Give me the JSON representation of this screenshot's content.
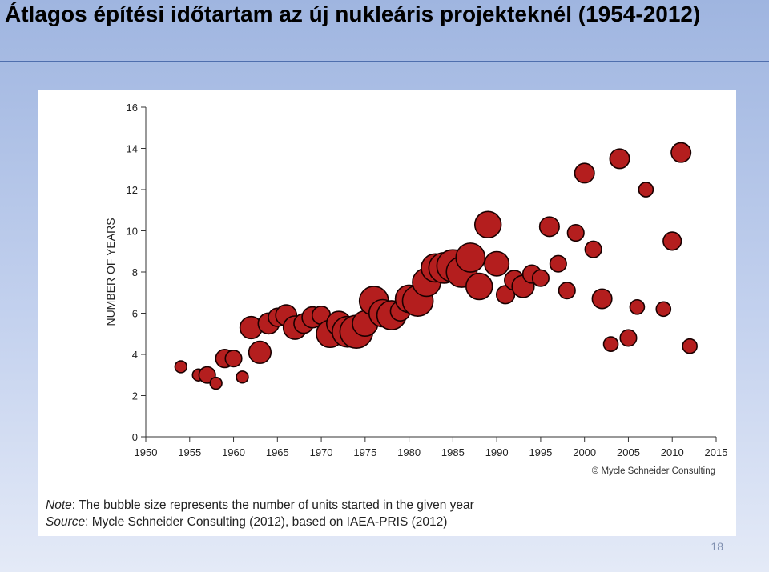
{
  "slide": {
    "title": "Átlagos építési időtartam az új nukleáris projekteknél (1954-2012)",
    "page_number": "18"
  },
  "chart_data": {
    "type": "scatter",
    "title": "",
    "xlabel": "",
    "ylabel": "NUMBER OF YEARS",
    "xlim": [
      1950,
      2015
    ],
    "ylim": [
      0,
      16
    ],
    "x_ticks": [
      "1950",
      "1955",
      "1960",
      "1965",
      "1970",
      "1975",
      "1980",
      "1985",
      "1990",
      "1995",
      "2000",
      "2005",
      "2010",
      "2015"
    ],
    "y_ticks": [
      "0",
      "2",
      "4",
      "6",
      "8",
      "10",
      "12",
      "14",
      "16"
    ],
    "grid": false,
    "legend": "none",
    "bubble_color": "#b41e1e",
    "bubble_stroke": "#1a0000",
    "copyright": "© Mycle Schneider Consulting",
    "note_label": "Note",
    "note_text": ": The bubble size represents the number of units started in the given year",
    "source_label": "Source",
    "source_text": ": Mycle Schneider Consulting (2012), based on IAEA-PRIS (2012)",
    "points": [
      {
        "x": 1954,
        "y": 3.4,
        "size": 1
      },
      {
        "x": 1956,
        "y": 3.0,
        "size": 1
      },
      {
        "x": 1957,
        "y": 3.0,
        "size": 3
      },
      {
        "x": 1958,
        "y": 2.6,
        "size": 1
      },
      {
        "x": 1959,
        "y": 3.8,
        "size": 4
      },
      {
        "x": 1960,
        "y": 3.8,
        "size": 3
      },
      {
        "x": 1961,
        "y": 2.9,
        "size": 1
      },
      {
        "x": 1962,
        "y": 5.3,
        "size": 7
      },
      {
        "x": 1963,
        "y": 4.1,
        "size": 7
      },
      {
        "x": 1964,
        "y": 5.5,
        "size": 6
      },
      {
        "x": 1965,
        "y": 5.8,
        "size": 4
      },
      {
        "x": 1966,
        "y": 5.9,
        "size": 6
      },
      {
        "x": 1967,
        "y": 5.3,
        "size": 8
      },
      {
        "x": 1968,
        "y": 5.5,
        "size": 5
      },
      {
        "x": 1969,
        "y": 5.8,
        "size": 6
      },
      {
        "x": 1970,
        "y": 5.9,
        "size": 4
      },
      {
        "x": 1971,
        "y": 5.0,
        "size": 12
      },
      {
        "x": 1972,
        "y": 5.5,
        "size": 9
      },
      {
        "x": 1973,
        "y": 5.1,
        "size": 16
      },
      {
        "x": 1974,
        "y": 5.1,
        "size": 19
      },
      {
        "x": 1975,
        "y": 5.5,
        "size": 10
      },
      {
        "x": 1976,
        "y": 6.6,
        "size": 14
      },
      {
        "x": 1977,
        "y": 6.0,
        "size": 12
      },
      {
        "x": 1978,
        "y": 5.9,
        "size": 14
      },
      {
        "x": 1979,
        "y": 6.1,
        "size": 5
      },
      {
        "x": 1980,
        "y": 6.7,
        "size": 12
      },
      {
        "x": 1981,
        "y": 6.6,
        "size": 16
      },
      {
        "x": 1982,
        "y": 7.5,
        "size": 13
      },
      {
        "x": 1983,
        "y": 8.2,
        "size": 13
      },
      {
        "x": 1984,
        "y": 8.2,
        "size": 16
      },
      {
        "x": 1985,
        "y": 8.3,
        "size": 18
      },
      {
        "x": 1986,
        "y": 8.0,
        "size": 16
      },
      {
        "x": 1987,
        "y": 8.7,
        "size": 14
      },
      {
        "x": 1988,
        "y": 7.3,
        "size": 11
      },
      {
        "x": 1989,
        "y": 10.3,
        "size": 11
      },
      {
        "x": 1990,
        "y": 8.4,
        "size": 9
      },
      {
        "x": 1991,
        "y": 6.9,
        "size": 4
      },
      {
        "x": 1992,
        "y": 7.6,
        "size": 5
      },
      {
        "x": 1993,
        "y": 7.3,
        "size": 7
      },
      {
        "x": 1994,
        "y": 7.9,
        "size": 4
      },
      {
        "x": 1995,
        "y": 7.7,
        "size": 3
      },
      {
        "x": 1996,
        "y": 10.2,
        "size": 5
      },
      {
        "x": 1997,
        "y": 8.4,
        "size": 3
      },
      {
        "x": 1998,
        "y": 7.1,
        "size": 3
      },
      {
        "x": 1999,
        "y": 9.9,
        "size": 3
      },
      {
        "x": 2000,
        "y": 12.8,
        "size": 5
      },
      {
        "x": 2001,
        "y": 9.1,
        "size": 3
      },
      {
        "x": 2002,
        "y": 6.7,
        "size": 5
      },
      {
        "x": 2003,
        "y": 4.5,
        "size": 2
      },
      {
        "x": 2004,
        "y": 13.5,
        "size": 5
      },
      {
        "x": 2005,
        "y": 4.8,
        "size": 3
      },
      {
        "x": 2006,
        "y": 6.3,
        "size": 2
      },
      {
        "x": 2007,
        "y": 12.0,
        "size": 2
      },
      {
        "x": 2009,
        "y": 6.2,
        "size": 2
      },
      {
        "x": 2010,
        "y": 9.5,
        "size": 4
      },
      {
        "x": 2011,
        "y": 13.8,
        "size": 5
      },
      {
        "x": 2012,
        "y": 4.4,
        "size": 2
      }
    ]
  }
}
